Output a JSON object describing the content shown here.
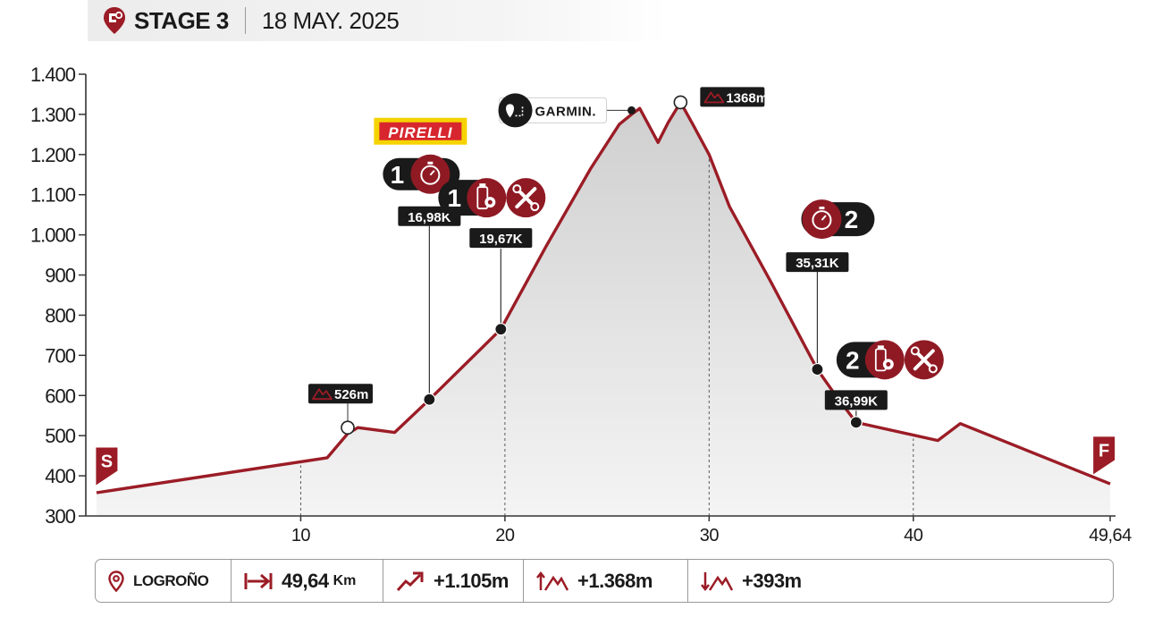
{
  "header": {
    "stage": "STAGE 3",
    "date": "18 MAY. 2025"
  },
  "chart_data": {
    "type": "area",
    "xlabel": "",
    "ylabel": "",
    "xlim": [
      0,
      49.64
    ],
    "ylim": [
      300,
      1400
    ],
    "y_ticks": [
      {
        "value": 300,
        "label": "300"
      },
      {
        "value": 400,
        "label": "400"
      },
      {
        "value": 500,
        "label": "500"
      },
      {
        "value": 600,
        "label": "600"
      },
      {
        "value": 700,
        "label": "700"
      },
      {
        "value": 800,
        "label": "800"
      },
      {
        "value": 900,
        "label": "900"
      },
      {
        "value": 1000,
        "label": "1.000"
      },
      {
        "value": 1100,
        "label": "1.100"
      },
      {
        "value": 1200,
        "label": "1.200"
      },
      {
        "value": 1300,
        "label": "1.300"
      },
      {
        "value": 1400,
        "label": "1.400"
      }
    ],
    "x_ticks": [
      {
        "value": 10,
        "label": "10"
      },
      {
        "value": 20,
        "label": "20"
      },
      {
        "value": 30,
        "label": "30"
      },
      {
        "value": 40,
        "label": "40"
      },
      {
        "value": 49.64,
        "label": "49,64"
      }
    ],
    "grid": "dashed vertical lines at 10, 20, 30, 40 km",
    "series": [
      {
        "x": [
          0,
          11.3,
          12.3,
          12.8,
          14.6,
          16.3,
          19.8,
          22.0,
          24.2,
          25.6,
          26.2,
          26.6,
          27.5,
          28.0,
          28.6,
          29.2,
          30.0,
          31.0,
          33.0,
          35.3,
          36.2,
          37.2,
          41.2,
          42.3,
          49.64
        ],
        "y": [
          358,
          445,
          505,
          520,
          508,
          590,
          765,
          970,
          1165,
          1275,
          1300,
          1315,
          1230,
          1280,
          1330,
          1275,
          1200,
          1070,
          885,
          665,
          600,
          533,
          488,
          530,
          380
        ]
      }
    ],
    "colors": {
      "line": "#9b1c26",
      "fill_top": "#cfcfcf",
      "fill_bottom": "#f4f4f4",
      "badge_dark": "#1a1a1a",
      "badge_red": "#8f1a24",
      "pirelli_yellow": "#f5d300",
      "pirelli_red": "#d7262e"
    },
    "start_label": "S",
    "finish_label": "F",
    "points": [
      {
        "x": 12.3,
        "y": 520,
        "style": "open",
        "badge": "summit",
        "label": "526m"
      },
      {
        "x": 16.3,
        "y": 590,
        "style": "filled",
        "badge": "timed",
        "label": "16,98K",
        "number": "1",
        "sponsor": "PIRELLI"
      },
      {
        "x": 19.8,
        "y": 765,
        "style": "filled",
        "badge": "feed-tech",
        "label": "19,67K",
        "number": "1"
      },
      {
        "x": 26.2,
        "y": 1310,
        "style": "small",
        "badge": "garmin",
        "label": "GARMIN."
      },
      {
        "x": 28.6,
        "y": 1330,
        "style": "open",
        "badge": "summit",
        "label": "1368m"
      },
      {
        "x": 35.3,
        "y": 665,
        "style": "filled",
        "badge": "timed-end",
        "label": "35,31K",
        "number": "2"
      },
      {
        "x": 37.2,
        "y": 533,
        "style": "filled",
        "badge": "feed-tech",
        "label": "36,99K",
        "number": "2"
      }
    ]
  },
  "footer": {
    "start_city": "LOGROÑO",
    "distance": "49,64",
    "distance_unit": "Km",
    "ascent": "+1.105m",
    "max_altitude": "+1.368m",
    "descent": "+393m"
  }
}
